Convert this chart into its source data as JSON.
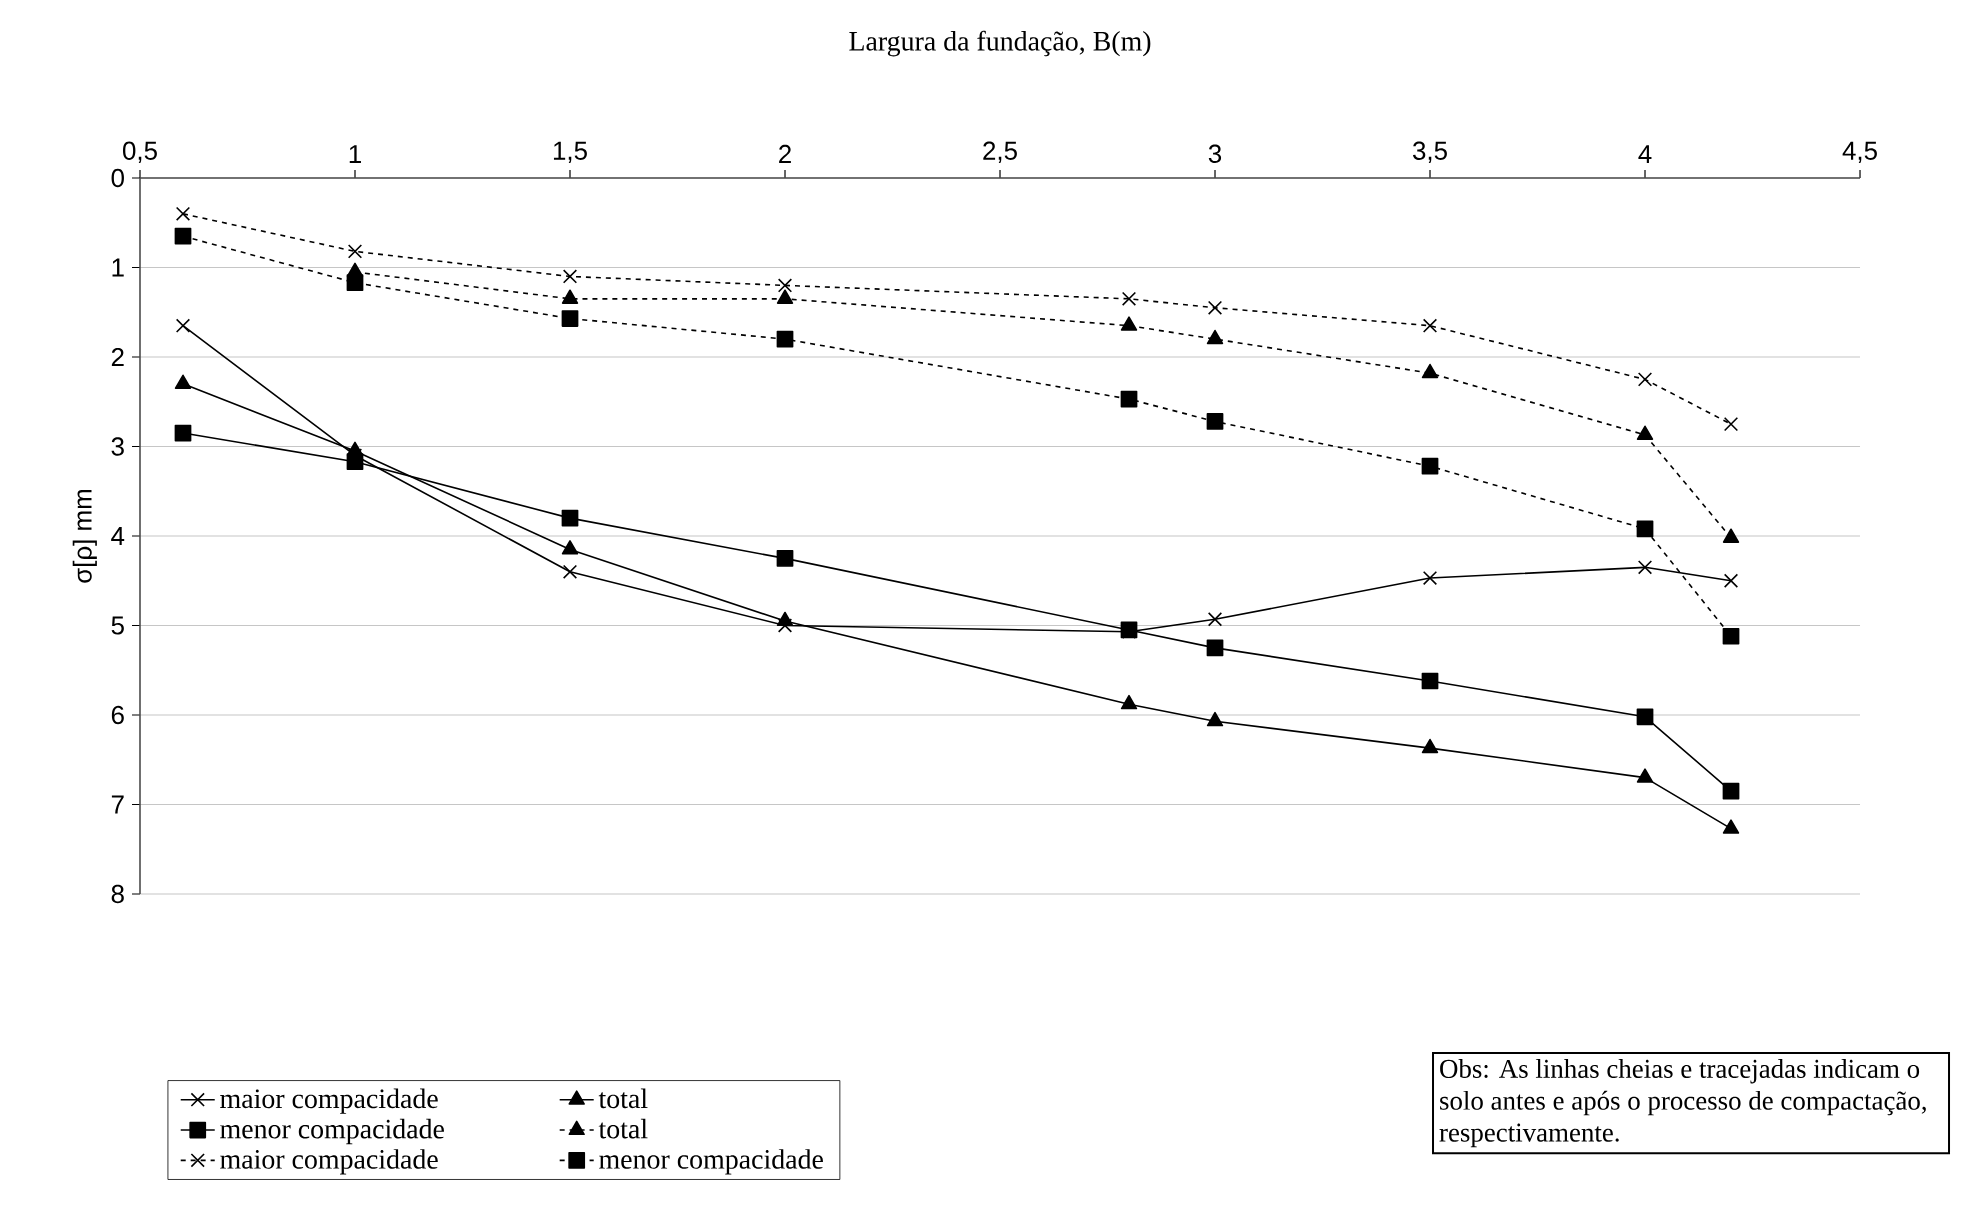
{
  "chart_data": {
    "type": "line",
    "xlabel": "Largura da fundação, B(m)",
    "ylabel": "σ[ρ] mm",
    "x": [
      0.6,
      1,
      1.5,
      2,
      2.8,
      3,
      3.5,
      4,
      4.2
    ],
    "series": [
      {
        "name": "maior compacidade",
        "color": "#000000",
        "marker": "cross",
        "line_style": "solid",
        "values": [
          1.65,
          3.1,
          4.4,
          5.0,
          5.07,
          4.93,
          4.47,
          4.35,
          4.5
        ]
      },
      {
        "name": "total",
        "color": "#000000",
        "marker": "triangle",
        "line_style": "solid",
        "values": [
          2.3,
          3.05,
          4.15,
          4.95,
          5.88,
          6.07,
          6.37,
          6.7,
          7.27
        ]
      },
      {
        "name": "menor compacidade",
        "color": "#000000",
        "marker": "square",
        "line_style": "solid",
        "values": [
          2.85,
          3.17,
          3.8,
          4.25,
          5.05,
          5.25,
          5.62,
          6.02,
          6.85
        ]
      },
      {
        "name": "total",
        "color": "#000000",
        "marker": "triangle",
        "line_style": "dashed",
        "values": [
          null,
          1.05,
          1.35,
          1.35,
          1.65,
          1.8,
          2.18,
          2.87,
          4.02
        ]
      },
      {
        "name": "maior compacidade",
        "color": "#000000",
        "marker": "cross",
        "line_style": "dashed",
        "values": [
          0.4,
          0.82,
          1.1,
          1.2,
          1.35,
          1.45,
          1.65,
          2.25,
          2.75
        ]
      },
      {
        "name": "menor compacidade",
        "color": "#000000",
        "marker": "square",
        "line_style": "dashed",
        "values": [
          0.65,
          1.17,
          1.57,
          1.8,
          2.47,
          2.72,
          3.22,
          3.92,
          5.12
        ]
      }
    ],
    "xlim": [
      0.5,
      4.5
    ],
    "xticks": [
      {
        "value": 0.5,
        "label": "0,5"
      },
      1,
      {
        "value": 1.5,
        "label": "1,5"
      },
      2,
      {
        "value": 2.5,
        "label": "2,5"
      },
      3,
      {
        "value": 3.5,
        "label": "3,5"
      },
      4,
      {
        "value": 4.5,
        "label": "4,5"
      }
    ],
    "ylim": [
      8,
      0
    ],
    "yticks": [
      0,
      1,
      2,
      3,
      4,
      5,
      6,
      7,
      8
    ],
    "grid": "y",
    "legend": "bottom left",
    "annotations": [
      "Obs: As linhas cheias e tracejadas indicam o solo antes e após o processo de compactação, respectivamente."
    ]
  }
}
